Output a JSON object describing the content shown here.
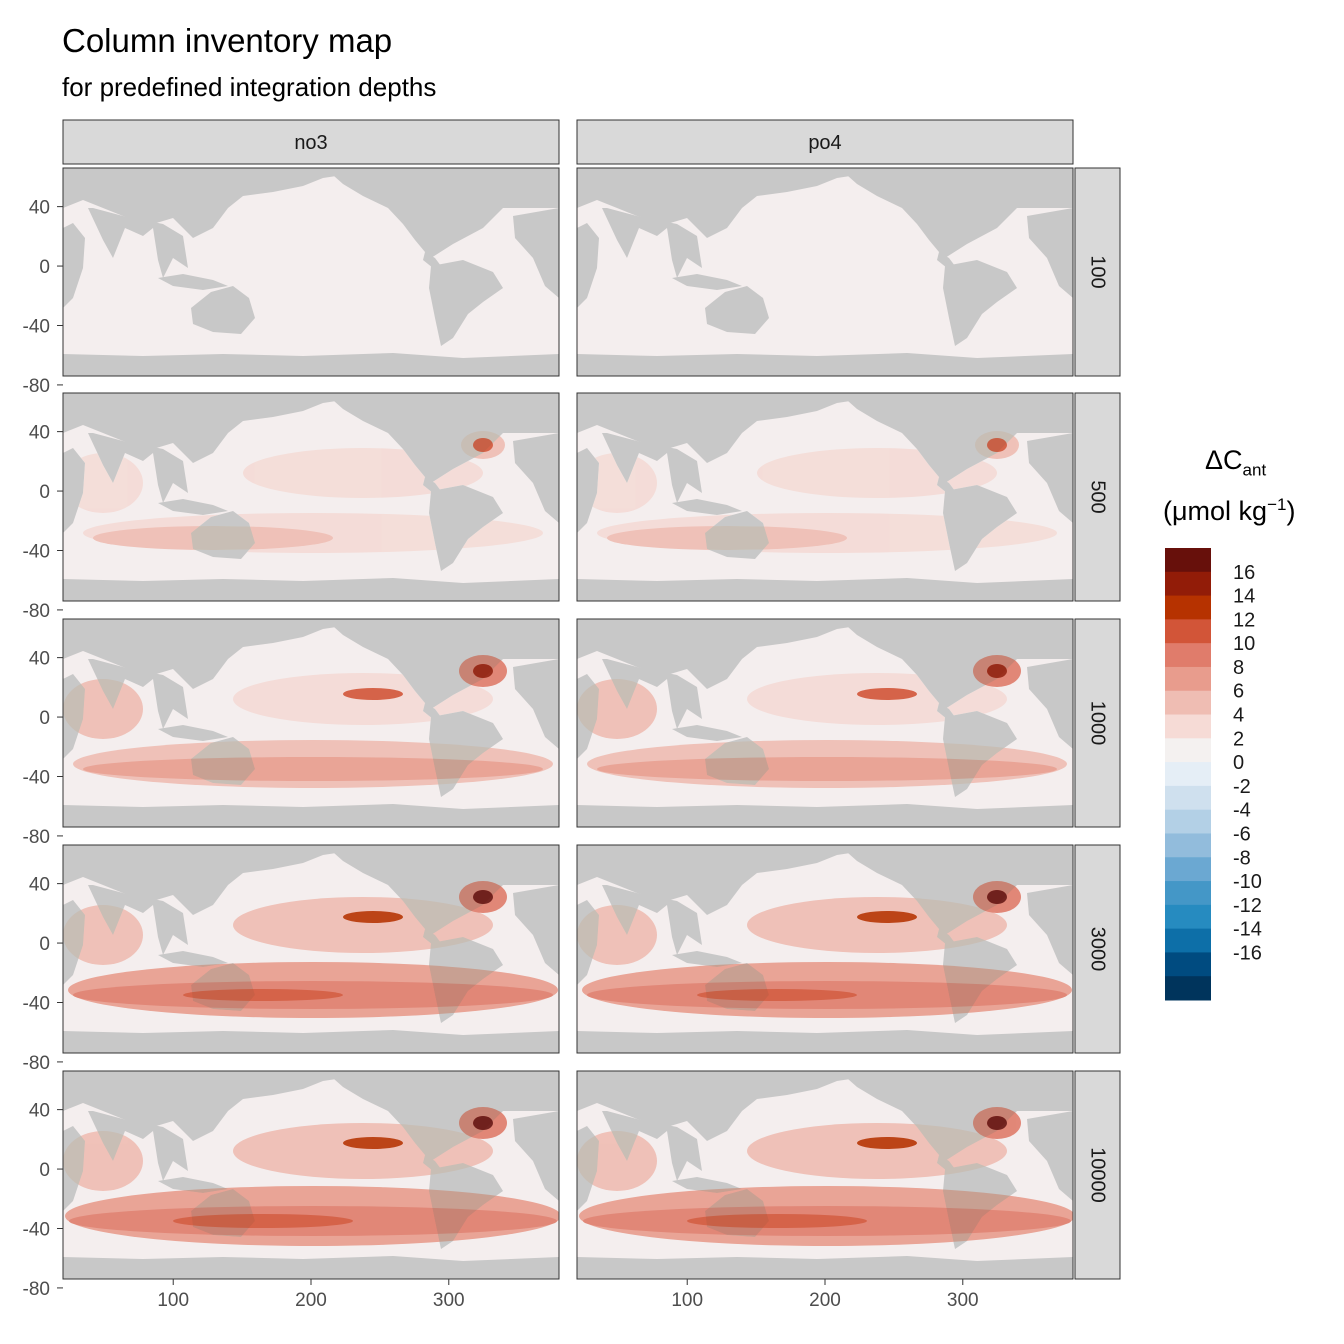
{
  "title": "Column inventory map",
  "subtitle": "for predefined integration depths",
  "columns": [
    "no3",
    "po4"
  ],
  "rows": [
    "100",
    "500",
    "1000",
    "3000",
    "10000"
  ],
  "y_ticks": [
    "40",
    "0",
    "-40",
    "-80"
  ],
  "x_ticks": [
    "100",
    "200",
    "300"
  ],
  "legend": {
    "title_main": "ΔC",
    "title_sub": "ant",
    "unit_prefix": "(μmol kg",
    "unit_sup": "−1",
    "unit_suffix": ")",
    "labels": [
      "16",
      "14",
      "12",
      "10",
      "8",
      "6",
      "4",
      "2",
      "0",
      "-2",
      "-4",
      "-6",
      "-8",
      "-10",
      "-12",
      "-14",
      "-16"
    ],
    "colors": [
      "#67100b",
      "#921c08",
      "#b63200",
      "#d25538",
      "#e07c6b",
      "#e89c8d",
      "#efbdb3",
      "#f6dbd6",
      "#f4f1f0",
      "#e5eef6",
      "#cfe0ee",
      "#b3d0e6",
      "#92bcdc",
      "#6ba8d2",
      "#4497c7",
      "#268bc0",
      "#0d6fa8",
      "#004b80",
      "#00345c"
    ]
  },
  "colors": {
    "land": "#c8c8c8",
    "strip": "#d9d9d9",
    "ocean_base": "#f4eeee"
  }
}
